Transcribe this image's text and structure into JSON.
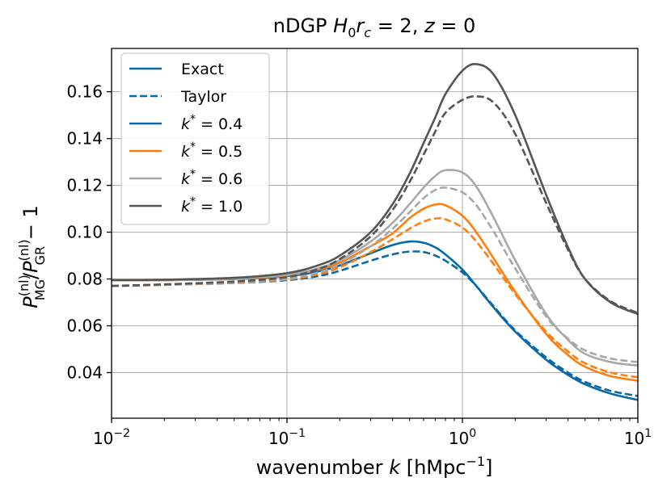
{
  "chart_data": {
    "type": "line",
    "title_prefix": "nDGP ",
    "title_math": "H",
    "title_sub0": "0",
    "title_r": "r",
    "title_subc": "c",
    "title_eq": " = 2, ",
    "title_z": "z",
    "title_eq2": " = 0",
    "xlabel_prefix": "wavenumber ",
    "xlabel_k": "k",
    "xlabel_units": " [hMpc",
    "xlabel_exp": "−1",
    "xlabel_close": "]",
    "ylabel_P": "P",
    "ylabel_sup": "(nl)",
    "ylabel_subMG": "MG",
    "ylabel_subGR": "GR",
    "ylabel_tail": " − 1",
    "xscale": "log",
    "xlim": [
      0.01,
      10
    ],
    "ylim": [
      0.0205,
      0.1785
    ],
    "x_ticks": [
      {
        "value": 0.01,
        "base": "10",
        "exp": "−2"
      },
      {
        "value": 0.1,
        "base": "10",
        "exp": "−1"
      },
      {
        "value": 1,
        "base": "10",
        "exp": "0"
      },
      {
        "value": 10,
        "base": "10",
        "exp": "1"
      }
    ],
    "y_ticks": [
      {
        "value": 0.04,
        "label": "0.04"
      },
      {
        "value": 0.06,
        "label": "0.06"
      },
      {
        "value": 0.08,
        "label": "0.08"
      },
      {
        "value": 0.1,
        "label": "0.10"
      },
      {
        "value": 0.12,
        "label": "0.12"
      },
      {
        "value": 0.14,
        "label": "0.14"
      },
      {
        "value": 0.16,
        "label": "0.16"
      }
    ],
    "grid": true,
    "legend_position": "upper-left",
    "legend": [
      {
        "label": "Exact",
        "color": "#0868a8",
        "dash": false,
        "kstar": false
      },
      {
        "label": "Taylor",
        "color": "#0868a8",
        "dash": true,
        "kstar": false
      },
      {
        "label": "k* = 0.4",
        "value": "0.4",
        "color": "#0868a8",
        "dash": false,
        "kstar": true
      },
      {
        "label": "k* = 0.5",
        "value": "0.5",
        "color": "#ff7f0e",
        "dash": false,
        "kstar": true
      },
      {
        "label": "k* = 0.6",
        "value": "0.6",
        "color": "#a8a8a8",
        "dash": false,
        "kstar": true
      },
      {
        "label": "k* = 1.0",
        "value": "1.0",
        "color": "#555555",
        "dash": false,
        "kstar": true
      }
    ],
    "x": [
      0.01,
      0.02,
      0.05,
      0.1,
      0.15,
      0.2,
      0.3,
      0.4,
      0.5,
      0.6,
      0.7,
      0.8,
      1.0,
      1.2,
      1.5,
      2.0,
      3.0,
      4.0,
      5.0,
      7.0,
      10.0
    ],
    "series": [
      {
        "name": "Exact k*=0.4",
        "color": "#0868a8",
        "dash": false,
        "values": [
          0.0795,
          0.0795,
          0.08,
          0.0812,
          0.0832,
          0.0858,
          0.091,
          0.0945,
          0.096,
          0.0955,
          0.0935,
          0.0905,
          0.084,
          0.077,
          0.068,
          0.0575,
          0.0455,
          0.039,
          0.035,
          0.031,
          0.0283
        ]
      },
      {
        "name": "Taylor k*=0.4",
        "color": "#0868a8",
        "dash": true,
        "values": [
          0.077,
          0.0775,
          0.0783,
          0.0795,
          0.0812,
          0.0835,
          0.0878,
          0.0905,
          0.0917,
          0.0915,
          0.09,
          0.0878,
          0.0828,
          0.077,
          0.0685,
          0.058,
          0.0465,
          0.04,
          0.036,
          0.0322,
          0.03
        ]
      },
      {
        "name": "Exact k*=0.5",
        "color": "#ff7f0e",
        "dash": false,
        "values": [
          0.0795,
          0.0795,
          0.0801,
          0.0815,
          0.084,
          0.087,
          0.094,
          0.0995,
          0.106,
          0.11,
          0.1118,
          0.1115,
          0.107,
          0.1,
          0.089,
          0.0745,
          0.0565,
          0.0475,
          0.0425,
          0.0385,
          0.0365
        ]
      },
      {
        "name": "Taylor k*=0.5",
        "color": "#ff7f0e",
        "dash": true,
        "values": [
          0.077,
          0.0775,
          0.0784,
          0.0798,
          0.082,
          0.085,
          0.0915,
          0.097,
          0.1015,
          0.1045,
          0.1058,
          0.1055,
          0.102,
          0.096,
          0.0865,
          0.0735,
          0.0575,
          0.049,
          0.044,
          0.04,
          0.038
        ]
      },
      {
        "name": "Exact k*=0.6",
        "color": "#a8a8a8",
        "dash": false,
        "values": [
          0.0795,
          0.0796,
          0.0802,
          0.0818,
          0.0845,
          0.088,
          0.096,
          0.104,
          0.112,
          0.119,
          0.124,
          0.1265,
          0.1255,
          0.1195,
          0.1065,
          0.088,
          0.065,
          0.054,
          0.048,
          0.0445,
          0.043
        ]
      },
      {
        "name": "Taylor k*=0.6",
        "color": "#a8a8a8",
        "dash": true,
        "values": [
          0.077,
          0.0776,
          0.0785,
          0.0801,
          0.0827,
          0.0862,
          0.094,
          0.1015,
          0.1085,
          0.1145,
          0.118,
          0.119,
          0.117,
          0.1115,
          0.1005,
          0.0845,
          0.064,
          0.0545,
          0.0495,
          0.046,
          0.0445
        ]
      },
      {
        "name": "Exact k*=1.0",
        "color": "#555555",
        "dash": false,
        "values": [
          0.0795,
          0.0797,
          0.0805,
          0.0825,
          0.0858,
          0.09,
          0.1,
          0.112,
          0.125,
          0.138,
          0.149,
          0.159,
          0.169,
          0.1718,
          0.1675,
          0.15,
          0.116,
          0.0935,
          0.08,
          0.07,
          0.065
        ]
      },
      {
        "name": "Taylor k*=1.0",
        "color": "#555555",
        "dash": true,
        "values": [
          0.077,
          0.0777,
          0.0789,
          0.0808,
          0.0842,
          0.0885,
          0.0982,
          0.1095,
          0.1215,
          0.133,
          0.143,
          0.151,
          0.1565,
          0.158,
          0.1555,
          0.142,
          0.1125,
          0.0925,
          0.08,
          0.0705,
          0.0655
        ]
      }
    ]
  }
}
